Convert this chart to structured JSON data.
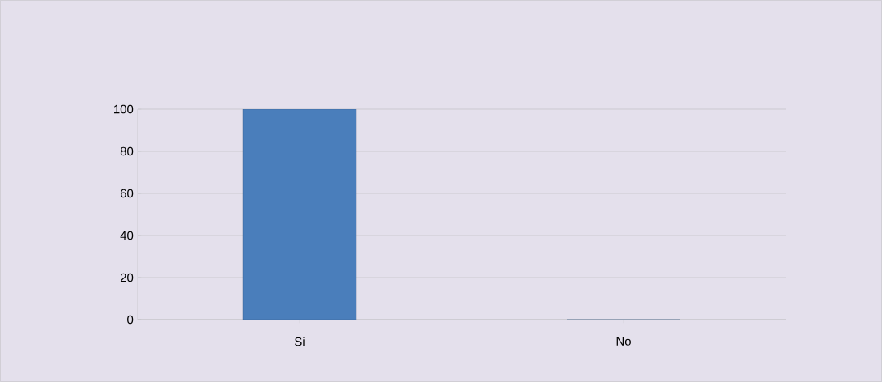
{
  "chart_data": {
    "type": "bar",
    "categories": [
      "Si",
      "No"
    ],
    "values": [
      100,
      0
    ],
    "color": "#4a7ebb",
    "ylim": [
      0,
      100
    ],
    "yticks": [
      0,
      20,
      40,
      60,
      80,
      100
    ],
    "grid": "y"
  }
}
